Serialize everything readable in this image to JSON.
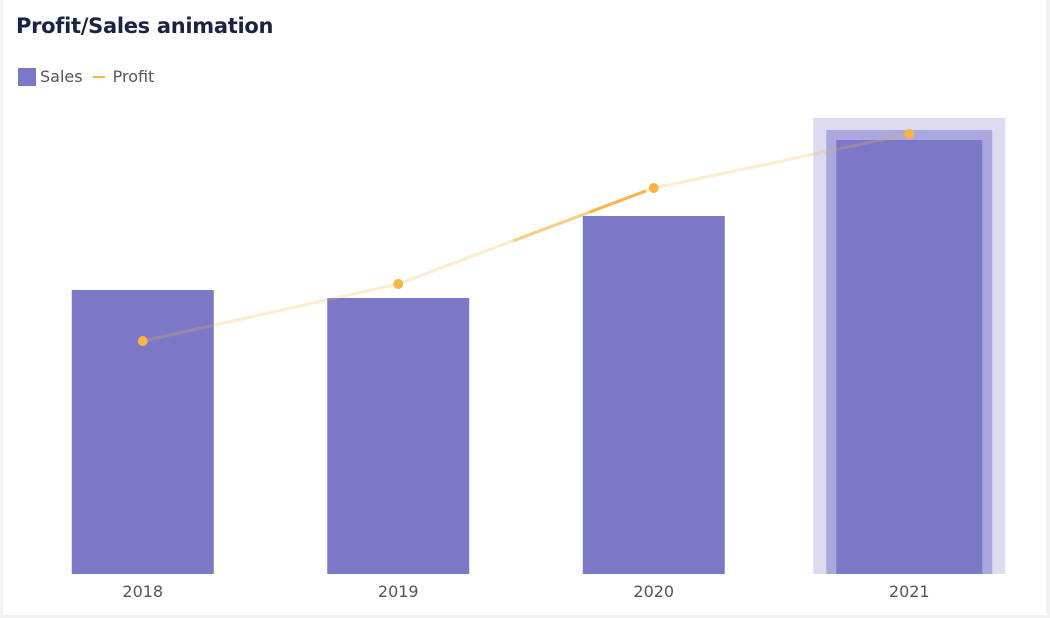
{
  "title": "Profit/Sales animation",
  "legend": {
    "sales": "Sales",
    "profit": "Profit"
  },
  "colors": {
    "sales": "#7b78c8",
    "profit": "#f7b548",
    "highlight": "#dcdbf2"
  },
  "chart_data": {
    "type": "bar+line",
    "title": "Profit/Sales animation",
    "categories": [
      "2018",
      "2019",
      "2020",
      "2021"
    ],
    "series": [
      {
        "name": "Sales",
        "type": "bar",
        "values": [
          284,
          276,
          358,
          434
        ]
      },
      {
        "name": "Profit",
        "type": "line",
        "values": [
          233,
          290,
          386,
          440
        ]
      }
    ],
    "ylim": [
      0,
      460
    ],
    "highlighted_category": "2021",
    "legend_position": "top-left",
    "grid": false,
    "xlabel": "",
    "ylabel": ""
  }
}
